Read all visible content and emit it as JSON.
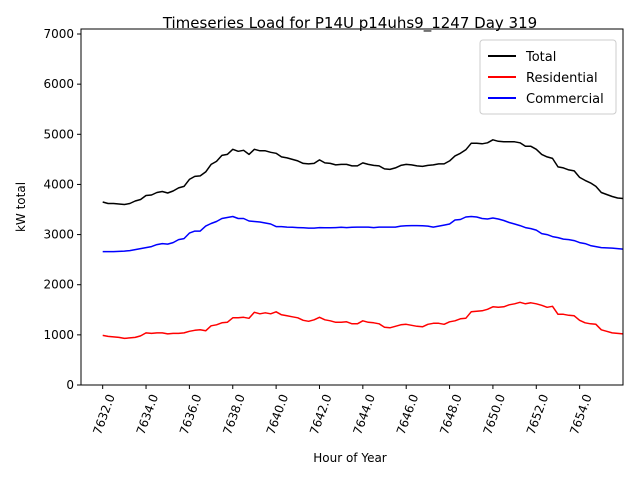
{
  "chart_data": {
    "type": "line",
    "title": "Timeseries Load for P14U p14uhs9_1247  Day 319",
    "xlabel": "Hour of Year",
    "ylabel": "kW total",
    "xlim": [
      7631.0,
      7656.0
    ],
    "ylim": [
      0,
      7100
    ],
    "x_ticks": [
      7632,
      7634,
      7636,
      7638,
      7640,
      7642,
      7644,
      7646,
      7648,
      7650,
      7652,
      7654
    ],
    "x_tick_labels": [
      "7632.0",
      "7634.0",
      "7636.0",
      "7638.0",
      "7640.0",
      "7642.0",
      "7644.0",
      "7646.0",
      "7648.0",
      "7650.0",
      "7652.0",
      "7654.0"
    ],
    "y_ticks": [
      0,
      1000,
      2000,
      3000,
      4000,
      5000,
      6000,
      7000
    ],
    "y_tick_labels": [
      "0",
      "1000",
      "2000",
      "3000",
      "4000",
      "5000",
      "6000",
      "7000"
    ],
    "legend_position": "top-right",
    "grid": false,
    "series": [
      {
        "name": "Total",
        "color": "#000000",
        "points": [
          [
            7632.0,
            3650
          ],
          [
            7632.25,
            3620
          ],
          [
            7632.5,
            3620
          ],
          [
            7632.75,
            3610
          ],
          [
            7633.0,
            3600
          ],
          [
            7633.25,
            3620
          ],
          [
            7633.5,
            3670
          ],
          [
            7633.75,
            3700
          ],
          [
            7634.0,
            3780
          ],
          [
            7634.25,
            3790
          ],
          [
            7634.5,
            3840
          ],
          [
            7634.75,
            3860
          ],
          [
            7635.0,
            3830
          ],
          [
            7635.25,
            3870
          ],
          [
            7635.5,
            3930
          ],
          [
            7635.75,
            3960
          ],
          [
            7636.0,
            4100
          ],
          [
            7636.25,
            4160
          ],
          [
            7636.5,
            4170
          ],
          [
            7636.75,
            4250
          ],
          [
            7637.0,
            4400
          ],
          [
            7637.25,
            4460
          ],
          [
            7637.5,
            4580
          ],
          [
            7637.75,
            4600
          ],
          [
            7638.0,
            4700
          ],
          [
            7638.25,
            4660
          ],
          [
            7638.5,
            4680
          ],
          [
            7638.75,
            4600
          ],
          [
            7639.0,
            4700
          ],
          [
            7639.25,
            4670
          ],
          [
            7639.5,
            4670
          ],
          [
            7639.75,
            4640
          ],
          [
            7640.0,
            4620
          ],
          [
            7640.25,
            4550
          ],
          [
            7640.5,
            4530
          ],
          [
            7640.75,
            4500
          ],
          [
            7641.0,
            4470
          ],
          [
            7641.25,
            4420
          ],
          [
            7641.5,
            4410
          ],
          [
            7641.75,
            4420
          ],
          [
            7642.0,
            4490
          ],
          [
            7642.25,
            4430
          ],
          [
            7642.5,
            4420
          ],
          [
            7642.75,
            4390
          ],
          [
            7643.0,
            4400
          ],
          [
            7643.25,
            4400
          ],
          [
            7643.5,
            4370
          ],
          [
            7643.75,
            4370
          ],
          [
            7644.0,
            4430
          ],
          [
            7644.25,
            4400
          ],
          [
            7644.5,
            4380
          ],
          [
            7644.75,
            4370
          ],
          [
            7645.0,
            4310
          ],
          [
            7645.25,
            4300
          ],
          [
            7645.5,
            4330
          ],
          [
            7645.75,
            4380
          ],
          [
            7646.0,
            4400
          ],
          [
            7646.25,
            4390
          ],
          [
            7646.5,
            4370
          ],
          [
            7646.75,
            4360
          ],
          [
            7647.0,
            4380
          ],
          [
            7647.25,
            4390
          ],
          [
            7647.5,
            4410
          ],
          [
            7647.75,
            4410
          ],
          [
            7648.0,
            4470
          ],
          [
            7648.25,
            4570
          ],
          [
            7648.5,
            4620
          ],
          [
            7648.75,
            4690
          ],
          [
            7649.0,
            4820
          ],
          [
            7649.25,
            4820
          ],
          [
            7649.5,
            4810
          ],
          [
            7649.75,
            4830
          ],
          [
            7650.0,
            4890
          ],
          [
            7650.25,
            4860
          ],
          [
            7650.5,
            4850
          ],
          [
            7650.75,
            4850
          ],
          [
            7651.0,
            4850
          ],
          [
            7651.25,
            4830
          ],
          [
            7651.5,
            4760
          ],
          [
            7651.75,
            4760
          ],
          [
            7652.0,
            4700
          ],
          [
            7652.25,
            4600
          ],
          [
            7652.5,
            4550
          ],
          [
            7652.75,
            4520
          ],
          [
            7653.0,
            4350
          ],
          [
            7653.25,
            4330
          ],
          [
            7653.5,
            4290
          ],
          [
            7653.75,
            4270
          ],
          [
            7654.0,
            4140
          ],
          [
            7654.25,
            4080
          ],
          [
            7654.5,
            4030
          ],
          [
            7654.75,
            3960
          ],
          [
            7655.0,
            3840
          ],
          [
            7655.25,
            3800
          ],
          [
            7655.5,
            3760
          ],
          [
            7655.75,
            3730
          ],
          [
            7656.0,
            3720
          ]
        ]
      },
      {
        "name": "Residential",
        "color": "#ff0000",
        "points": [
          [
            7632.0,
            990
          ],
          [
            7632.25,
            970
          ],
          [
            7632.5,
            960
          ],
          [
            7632.75,
            950
          ],
          [
            7633.0,
            930
          ],
          [
            7633.25,
            940
          ],
          [
            7633.5,
            950
          ],
          [
            7633.75,
            980
          ],
          [
            7634.0,
            1040
          ],
          [
            7634.25,
            1030
          ],
          [
            7634.5,
            1040
          ],
          [
            7634.75,
            1040
          ],
          [
            7635.0,
            1020
          ],
          [
            7635.25,
            1030
          ],
          [
            7635.5,
            1030
          ],
          [
            7635.75,
            1040
          ],
          [
            7636.0,
            1070
          ],
          [
            7636.25,
            1090
          ],
          [
            7636.5,
            1100
          ],
          [
            7636.75,
            1080
          ],
          [
            7637.0,
            1180
          ],
          [
            7637.25,
            1200
          ],
          [
            7637.5,
            1240
          ],
          [
            7637.75,
            1250
          ],
          [
            7638.0,
            1340
          ],
          [
            7638.25,
            1340
          ],
          [
            7638.5,
            1350
          ],
          [
            7638.75,
            1330
          ],
          [
            7639.0,
            1450
          ],
          [
            7639.25,
            1420
          ],
          [
            7639.5,
            1440
          ],
          [
            7639.75,
            1420
          ],
          [
            7640.0,
            1460
          ],
          [
            7640.25,
            1400
          ],
          [
            7640.5,
            1380
          ],
          [
            7640.75,
            1360
          ],
          [
            7641.0,
            1340
          ],
          [
            7641.25,
            1290
          ],
          [
            7641.5,
            1270
          ],
          [
            7641.75,
            1300
          ],
          [
            7642.0,
            1350
          ],
          [
            7642.25,
            1300
          ],
          [
            7642.5,
            1280
          ],
          [
            7642.75,
            1250
          ],
          [
            7643.0,
            1250
          ],
          [
            7643.25,
            1260
          ],
          [
            7643.5,
            1220
          ],
          [
            7643.75,
            1220
          ],
          [
            7644.0,
            1280
          ],
          [
            7644.25,
            1250
          ],
          [
            7644.5,
            1240
          ],
          [
            7644.75,
            1220
          ],
          [
            7645.0,
            1150
          ],
          [
            7645.25,
            1140
          ],
          [
            7645.5,
            1170
          ],
          [
            7645.75,
            1200
          ],
          [
            7646.0,
            1210
          ],
          [
            7646.25,
            1190
          ],
          [
            7646.5,
            1170
          ],
          [
            7646.75,
            1160
          ],
          [
            7647.0,
            1210
          ],
          [
            7647.25,
            1230
          ],
          [
            7647.5,
            1230
          ],
          [
            7647.75,
            1210
          ],
          [
            7648.0,
            1260
          ],
          [
            7648.25,
            1280
          ],
          [
            7648.5,
            1320
          ],
          [
            7648.75,
            1330
          ],
          [
            7649.0,
            1460
          ],
          [
            7649.25,
            1470
          ],
          [
            7649.5,
            1480
          ],
          [
            7649.75,
            1510
          ],
          [
            7650.0,
            1560
          ],
          [
            7650.25,
            1550
          ],
          [
            7650.5,
            1560
          ],
          [
            7650.75,
            1600
          ],
          [
            7651.0,
            1620
          ],
          [
            7651.25,
            1650
          ],
          [
            7651.5,
            1620
          ],
          [
            7651.75,
            1640
          ],
          [
            7652.0,
            1620
          ],
          [
            7652.25,
            1590
          ],
          [
            7652.5,
            1550
          ],
          [
            7652.75,
            1570
          ],
          [
            7653.0,
            1410
          ],
          [
            7653.25,
            1410
          ],
          [
            7653.5,
            1390
          ],
          [
            7653.75,
            1380
          ],
          [
            7654.0,
            1290
          ],
          [
            7654.25,
            1240
          ],
          [
            7654.5,
            1220
          ],
          [
            7654.75,
            1210
          ],
          [
            7655.0,
            1100
          ],
          [
            7655.25,
            1070
          ],
          [
            7655.5,
            1040
          ],
          [
            7655.75,
            1030
          ],
          [
            7656.0,
            1020
          ]
        ]
      },
      {
        "name": "Commercial",
        "color": "#0000ff",
        "points": [
          [
            7632.0,
            2660
          ],
          [
            7632.25,
            2660
          ],
          [
            7632.5,
            2660
          ],
          [
            7632.75,
            2665
          ],
          [
            7633.0,
            2670
          ],
          [
            7633.25,
            2680
          ],
          [
            7633.5,
            2700
          ],
          [
            7633.75,
            2720
          ],
          [
            7634.0,
            2740
          ],
          [
            7634.25,
            2760
          ],
          [
            7634.5,
            2800
          ],
          [
            7634.75,
            2820
          ],
          [
            7635.0,
            2810
          ],
          [
            7635.25,
            2840
          ],
          [
            7635.5,
            2900
          ],
          [
            7635.75,
            2920
          ],
          [
            7636.0,
            3030
          ],
          [
            7636.25,
            3070
          ],
          [
            7636.5,
            3070
          ],
          [
            7636.75,
            3170
          ],
          [
            7637.0,
            3220
          ],
          [
            7637.25,
            3260
          ],
          [
            7637.5,
            3320
          ],
          [
            7637.75,
            3340
          ],
          [
            7638.0,
            3360
          ],
          [
            7638.25,
            3320
          ],
          [
            7638.5,
            3320
          ],
          [
            7638.75,
            3270
          ],
          [
            7639.0,
            3260
          ],
          [
            7639.25,
            3250
          ],
          [
            7639.5,
            3230
          ],
          [
            7639.75,
            3210
          ],
          [
            7640.0,
            3160
          ],
          [
            7640.25,
            3160
          ],
          [
            7640.5,
            3150
          ],
          [
            7640.75,
            3145
          ],
          [
            7641.0,
            3140
          ],
          [
            7641.25,
            3135
          ],
          [
            7641.5,
            3130
          ],
          [
            7641.75,
            3130
          ],
          [
            7642.0,
            3140
          ],
          [
            7642.25,
            3135
          ],
          [
            7642.5,
            3135
          ],
          [
            7642.75,
            3140
          ],
          [
            7643.0,
            3145
          ],
          [
            7643.25,
            3140
          ],
          [
            7643.5,
            3145
          ],
          [
            7643.75,
            3150
          ],
          [
            7644.0,
            3150
          ],
          [
            7644.25,
            3150
          ],
          [
            7644.5,
            3140
          ],
          [
            7644.75,
            3150
          ],
          [
            7645.0,
            3150
          ],
          [
            7645.25,
            3150
          ],
          [
            7645.5,
            3150
          ],
          [
            7645.75,
            3170
          ],
          [
            7646.0,
            3175
          ],
          [
            7646.25,
            3180
          ],
          [
            7646.5,
            3180
          ],
          [
            7646.75,
            3175
          ],
          [
            7647.0,
            3170
          ],
          [
            7647.25,
            3150
          ],
          [
            7647.5,
            3170
          ],
          [
            7647.75,
            3190
          ],
          [
            7648.0,
            3210
          ],
          [
            7648.25,
            3290
          ],
          [
            7648.5,
            3300
          ],
          [
            7648.75,
            3350
          ],
          [
            7649.0,
            3360
          ],
          [
            7649.25,
            3350
          ],
          [
            7649.5,
            3320
          ],
          [
            7649.75,
            3310
          ],
          [
            7650.0,
            3330
          ],
          [
            7650.25,
            3310
          ],
          [
            7650.5,
            3280
          ],
          [
            7650.75,
            3240
          ],
          [
            7651.0,
            3210
          ],
          [
            7651.25,
            3180
          ],
          [
            7651.5,
            3140
          ],
          [
            7651.75,
            3120
          ],
          [
            7652.0,
            3090
          ],
          [
            7652.25,
            3020
          ],
          [
            7652.5,
            3000
          ],
          [
            7652.75,
            2960
          ],
          [
            7653.0,
            2940
          ],
          [
            7653.25,
            2910
          ],
          [
            7653.5,
            2900
          ],
          [
            7653.75,
            2880
          ],
          [
            7654.0,
            2840
          ],
          [
            7654.25,
            2820
          ],
          [
            7654.5,
            2780
          ],
          [
            7654.75,
            2760
          ],
          [
            7655.0,
            2740
          ],
          [
            7655.25,
            2735
          ],
          [
            7655.5,
            2730
          ],
          [
            7655.75,
            2720
          ],
          [
            7656.0,
            2710
          ]
        ]
      }
    ]
  }
}
